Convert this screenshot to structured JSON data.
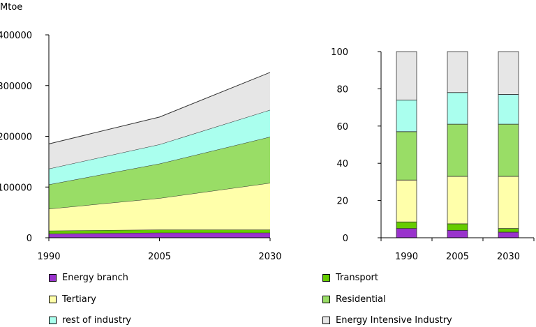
{
  "chart_data": [
    {
      "type": "area",
      "stacked": true,
      "ylabel": "Mtoe",
      "x": [
        "1990",
        "2005",
        "2030"
      ],
      "ylim": [
        0,
        400000
      ],
      "yticks": [
        "0",
        "100000",
        "200000",
        "300000",
        "400000"
      ],
      "series": [
        {
          "name": "Energy branch",
          "color": "#9933cc",
          "values": [
            8000,
            10000,
            10000
          ]
        },
        {
          "name": "Transport",
          "color": "#66cc00",
          "values": [
            6000,
            6000,
            6000
          ]
        },
        {
          "name": "Tertiary",
          "color": "#ffffaa",
          "values": [
            43000,
            62000,
            92000
          ]
        },
        {
          "name": "Residential",
          "color": "#99dd66",
          "values": [
            48000,
            68000,
            91000
          ]
        },
        {
          "name": "rest of industry",
          "color": "#aaffee",
          "values": [
            31000,
            38000,
            53000
          ]
        },
        {
          "name": "Energy Intensive Industry",
          "color": "#e6e6e6",
          "values": [
            49000,
            54000,
            74000
          ]
        }
      ]
    },
    {
      "type": "bar",
      "stacked": true,
      "categories": [
        "1990",
        "2005",
        "2030"
      ],
      "ylim": [
        0,
        100
      ],
      "yticks": [
        "0",
        "20",
        "40",
        "60",
        "80",
        "100"
      ],
      "series": [
        {
          "name": "Energy branch",
          "color": "#9933cc",
          "values": [
            5,
            4,
            3
          ]
        },
        {
          "name": "Transport",
          "color": "#66cc00",
          "values": [
            3.5,
            3.5,
            2
          ]
        },
        {
          "name": "Tertiary",
          "color": "#ffffaa",
          "values": [
            22.5,
            25.5,
            28
          ]
        },
        {
          "name": "Residential",
          "color": "#99dd66",
          "values": [
            26,
            28,
            28
          ]
        },
        {
          "name": "rest of industry",
          "color": "#aaffee",
          "values": [
            17,
            17,
            16
          ]
        },
        {
          "name": "Energy Intensive Industry",
          "color": "#e6e6e6",
          "values": [
            26,
            22,
            23
          ]
        }
      ]
    }
  ],
  "legend": [
    {
      "label": "Energy branch",
      "color": "#9933cc"
    },
    {
      "label": "Transport",
      "color": "#66cc00"
    },
    {
      "label": "Tertiary",
      "color": "#ffffaa"
    },
    {
      "label": "Residential",
      "color": "#99dd66"
    },
    {
      "label": "rest of industry",
      "color": "#aaffee"
    },
    {
      "label": "Energy Intensive Industry",
      "color": "#e6e6e6"
    }
  ]
}
